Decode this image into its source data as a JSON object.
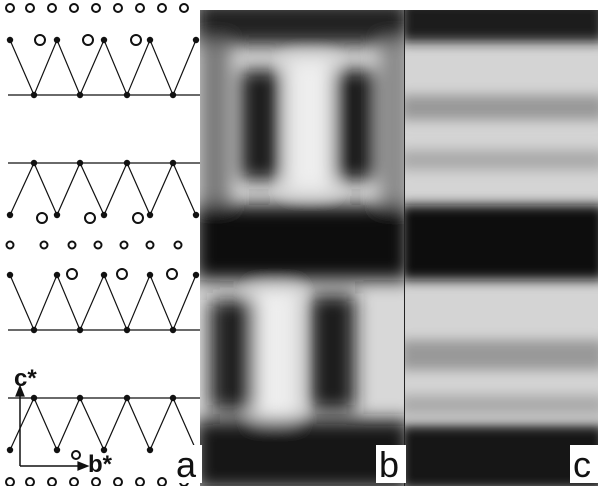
{
  "panels": [
    {
      "label": "a"
    },
    {
      "label": "b"
    },
    {
      "label": "c"
    }
  ],
  "axes": {
    "vertical": "c*",
    "horizontal": "b*"
  }
}
